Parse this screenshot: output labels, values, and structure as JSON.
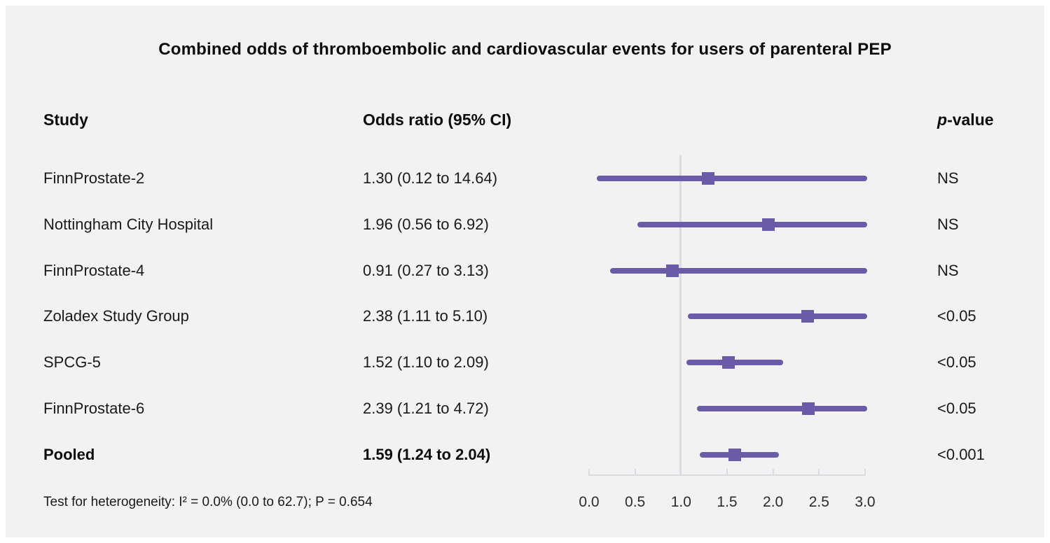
{
  "title": "Combined odds of thromboembolic and cardiovascular events for users of parenteral PEP",
  "columns": {
    "study": "Study",
    "odds_ratio": "Odds ratio (95% CI)",
    "p_italic": "p",
    "p_rest": "-value"
  },
  "footnote": "Test for heterogeneity: I² = 0.0% (0.0 to 62.7); P = 0.654",
  "colors": {
    "accent_purple": "#6a5aa8",
    "panel_background": "#f2f2f2",
    "axis_gray": "#d9dde2"
  },
  "chart_data": {
    "type": "scatter",
    "variant": "forest-plot",
    "title": "Combined odds of thromboembolic and cardiovascular events for users of parenteral PEP",
    "xlabel": "Odds ratio (95% CI)",
    "xlim": [
      0.0,
      3.0
    ],
    "x_ticks": [
      "0.0",
      "0.5",
      "1.0",
      "1.5",
      "2.0",
      "2.5",
      "3.0"
    ],
    "reference_line_x": 1.0,
    "grid": false,
    "legend": "none",
    "rows": [
      {
        "study": "FinnProstate-2",
        "or": 1.3,
        "ci_low": 0.12,
        "ci_high": 14.64,
        "or_text": "1.30 (0.12 to 14.64)",
        "p_value": "NS",
        "bold": false
      },
      {
        "study": "Nottingham City Hospital",
        "or": 1.96,
        "ci_low": 0.56,
        "ci_high": 6.92,
        "or_text": "1.96 (0.56 to 6.92)",
        "p_value": "NS",
        "bold": false
      },
      {
        "study": "FinnProstate-4",
        "or": 0.91,
        "ci_low": 0.27,
        "ci_high": 3.13,
        "or_text": "0.91 (0.27 to 3.13)",
        "p_value": "NS",
        "bold": false
      },
      {
        "study": "Zoladex Study Group",
        "or": 2.38,
        "ci_low": 1.11,
        "ci_high": 5.1,
        "or_text": "2.38 (1.11 to 5.10)",
        "p_value": "<0.05",
        "bold": false
      },
      {
        "study": "SPCG-5",
        "or": 1.52,
        "ci_low": 1.1,
        "ci_high": 2.09,
        "or_text": "1.52 (1.10 to 2.09)",
        "p_value": "<0.05",
        "bold": false
      },
      {
        "study": "FinnProstate-6",
        "or": 2.39,
        "ci_low": 1.21,
        "ci_high": 4.72,
        "or_text": "2.39 (1.21 to 4.72)",
        "p_value": "<0.05",
        "bold": false
      },
      {
        "study": "Pooled",
        "or": 1.59,
        "ci_low": 1.24,
        "ci_high": 2.04,
        "or_text": "1.59 (1.24 to 2.04)",
        "p_value": "<0.001",
        "bold": true
      }
    ]
  }
}
